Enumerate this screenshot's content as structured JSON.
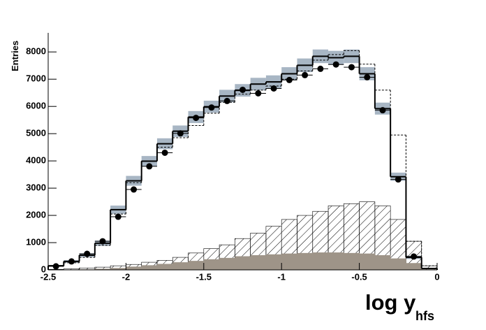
{
  "chart_data": {
    "type": "histogram",
    "y_label": "Entries",
    "x_label": "log y",
    "x_label_sub": "hfs",
    "bins": [
      -2.5,
      -2.4,
      -2.3,
      -2.2,
      -2.1,
      -2.0,
      -1.9,
      -1.8,
      -1.7,
      -1.6,
      -1.5,
      -1.4,
      -1.3,
      -1.2,
      -1.1,
      -1.0,
      -0.9,
      -0.8,
      -0.7,
      -0.6,
      -0.5,
      -0.4,
      -0.3,
      -0.2,
      -0.1,
      0
    ],
    "xlim": [
      -2.5,
      0
    ],
    "xticks": [
      -2.5,
      -2,
      -1.5,
      -1,
      -0.5,
      0
    ],
    "ylim": [
      0,
      8700
    ],
    "yticks": [
      0,
      1000,
      2000,
      3000,
      4000,
      5000,
      6000,
      7000,
      8000
    ],
    "series": [
      {
        "style": "hatched",
        "color": "#000000",
        "values": [
          20,
          40,
          70,
          100,
          150,
          200,
          280,
          350,
          460,
          620,
          780,
          920,
          1150,
          1350,
          1600,
          1850,
          2000,
          2150,
          2350,
          2430,
          2500,
          2350,
          1850,
          1050,
          150
        ]
      },
      {
        "style": "filled",
        "color": "#9e9488",
        "values": [
          5,
          10,
          20,
          40,
          70,
          120,
          170,
          220,
          280,
          330,
          390,
          440,
          500,
          540,
          570,
          600,
          620,
          640,
          640,
          620,
          600,
          540,
          420,
          250,
          20
        ]
      },
      {
        "style": "dashed",
        "color": "#000000",
        "values": [
          130,
          260,
          460,
          900,
          2050,
          3200,
          4000,
          4500,
          4850,
          5300,
          5750,
          6150,
          6450,
          6600,
          6750,
          7000,
          7300,
          7700,
          7900,
          8050,
          7550,
          6600,
          4950,
          1050,
          150
        ]
      },
      {
        "style": "step",
        "color": "#000000",
        "band_color": "#a8b6c4",
        "values": [
          150,
          310,
          540,
          980,
          2210,
          3270,
          3990,
          4630,
          5090,
          5610,
          5990,
          6380,
          6590,
          6820,
          6900,
          7200,
          7510,
          7840,
          7790,
          7840,
          7200,
          5920,
          3420,
          460,
          50
        ],
        "errors": [
          30,
          50,
          70,
          100,
          150,
          180,
          190,
          200,
          210,
          220,
          220,
          230,
          230,
          230,
          240,
          240,
          250,
          250,
          250,
          250,
          240,
          220,
          150,
          60,
          20
        ]
      },
      {
        "style": "points",
        "color": "#000000",
        "values": [
          130,
          310,
          590,
          1050,
          1950,
          2950,
          3800,
          4300,
          5010,
          5580,
          5960,
          6200,
          6610,
          6480,
          6660,
          6970,
          7150,
          7380,
          7540,
          7440,
          7070,
          5860,
          3320,
          490,
          null
        ]
      }
    ]
  }
}
